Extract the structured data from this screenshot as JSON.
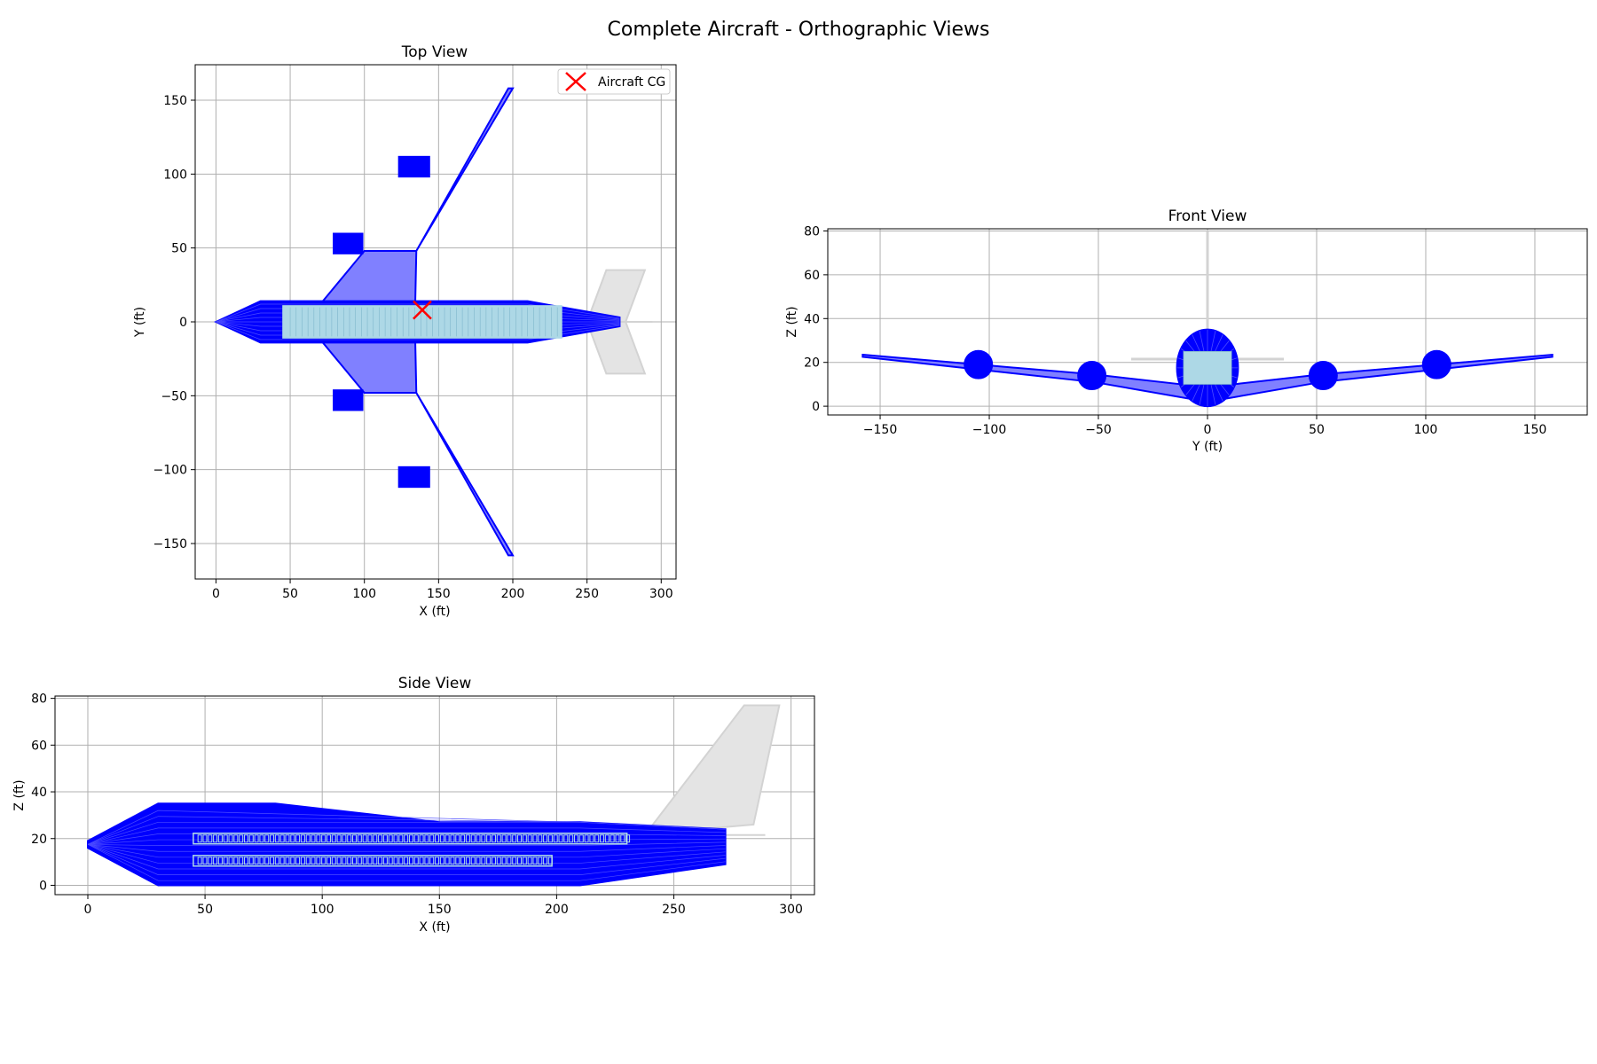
{
  "figure": {
    "title": "Complete Aircraft - Orthographic Views"
  },
  "colors": {
    "structure": "#0000ff",
    "wing_fill": "#8080ff",
    "cabin": "#add8e6",
    "tail": "#d3d3d3",
    "tail_fill": "#e4e4e4",
    "cg": "#ff0000",
    "grid": "#b0b0b0"
  },
  "chart_data": [
    {
      "id": "top",
      "type": "scatter",
      "title": "Top View",
      "xlabel": "X (ft)",
      "ylabel": "Y (ft)",
      "xlim": [
        -14,
        310
      ],
      "ylim": [
        -174,
        174
      ],
      "xticks": [
        0,
        50,
        100,
        150,
        200,
        250,
        300
      ],
      "yticks": [
        -150,
        -100,
        -50,
        0,
        50,
        100,
        150
      ],
      "grid": true,
      "legend": {
        "placement": "upper-right",
        "entries": [
          "Aircraft CG"
        ]
      },
      "cg": {
        "x": 139,
        "y": 8
      },
      "fuselage_outline": [
        [
          0,
          0
        ],
        [
          30,
          14
        ],
        [
          210,
          14
        ],
        [
          272,
          3
        ],
        [
          272,
          -3
        ],
        [
          210,
          -14
        ],
        [
          30,
          -14
        ]
      ],
      "wing_planform": [
        [
          72,
          14
        ],
        [
          100,
          48
        ],
        [
          135,
          48
        ],
        [
          197,
          158
        ],
        [
          200,
          158
        ],
        [
          135,
          48
        ],
        [
          134,
          0
        ],
        [
          135,
          -48
        ],
        [
          200,
          -158
        ],
        [
          197,
          -158
        ],
        [
          135,
          -48
        ],
        [
          100,
          -48
        ],
        [
          72,
          -14
        ]
      ],
      "engines": [
        {
          "x": [
            79,
            99
          ],
          "y": [
            46,
            60
          ]
        },
        {
          "x": [
            123,
            144
          ],
          "y": [
            98,
            112
          ]
        },
        {
          "x": [
            79,
            99
          ],
          "y": [
            -60,
            -46
          ]
        },
        {
          "x": [
            123,
            144
          ],
          "y": [
            -112,
            -98
          ]
        }
      ],
      "cabin": {
        "x": [
          45,
          233
        ],
        "y": [
          -11,
          11
        ]
      },
      "horizontal_tail": [
        [
          250,
          0
        ],
        [
          263,
          35
        ],
        [
          289,
          35
        ],
        [
          276,
          0
        ],
        [
          289,
          -35
        ],
        [
          263,
          -35
        ]
      ],
      "vertical_tail": [
        [
          250,
          0
        ],
        [
          294,
          0
        ]
      ]
    },
    {
      "id": "front",
      "type": "scatter",
      "title": "Front View",
      "xlabel": "Y (ft)",
      "ylabel": "Z (ft)",
      "xlim": [
        -174,
        174
      ],
      "ylim": [
        -4,
        81
      ],
      "xticks": [
        -150,
        -100,
        -50,
        0,
        50,
        100,
        150
      ],
      "yticks": [
        0,
        20,
        40,
        60,
        80
      ],
      "grid": true,
      "wing_leading": [
        [
          -158,
          23.5
        ],
        [
          -105,
          19
        ],
        [
          -52,
          14.5
        ],
        [
          -12,
          10
        ],
        [
          0,
          0
        ],
        [
          12,
          10
        ],
        [
          52,
          14.5
        ],
        [
          105,
          19
        ],
        [
          158,
          23.5
        ]
      ],
      "wing_trailing": [
        [
          -158,
          22.5
        ],
        [
          -52,
          11
        ],
        [
          0,
          2
        ],
        [
          52,
          11
        ],
        [
          158,
          22.5
        ]
      ],
      "engines": [
        {
          "y": -105,
          "z": 19,
          "r": 6.5
        },
        {
          "y": -53,
          "z": 14,
          "r": 6.5
        },
        {
          "y": 53,
          "z": 14,
          "r": 6.5
        },
        {
          "y": 105,
          "z": 19,
          "r": 6.5
        }
      ],
      "fuselage": {
        "y": [
          -14,
          14
        ],
        "z": [
          0,
          35
        ]
      },
      "horizontal_tail": {
        "y": [
          -35,
          35
        ],
        "z": 21.5
      },
      "vertical_tail": {
        "y": 0,
        "z": [
          22,
          80
        ]
      }
    },
    {
      "id": "side",
      "type": "scatter",
      "title": "Side View",
      "xlabel": "X (ft)",
      "ylabel": "Z (ft)",
      "xlim": [
        -14,
        310
      ],
      "ylim": [
        -4,
        81
      ],
      "xticks": [
        0,
        50,
        100,
        150,
        200,
        250,
        300
      ],
      "yticks": [
        0,
        20,
        40,
        60,
        80
      ],
      "grid": true,
      "fuselage_outline": [
        [
          0,
          19
        ],
        [
          30,
          35
        ],
        [
          80,
          35
        ],
        [
          150,
          27
        ],
        [
          210,
          27
        ],
        [
          272,
          24
        ],
        [
          272,
          9
        ],
        [
          210,
          0
        ],
        [
          30,
          0
        ],
        [
          0,
          16
        ]
      ],
      "cabin_upper": {
        "x": [
          45,
          230
        ],
        "z": 20
      },
      "cabin_lower": {
        "x": [
          45,
          198
        ],
        "z": 10.5
      },
      "vertical_tail": [
        [
          238,
          22
        ],
        [
          280,
          77
        ],
        [
          295,
          77
        ],
        [
          284,
          26
        ],
        [
          238,
          22
        ]
      ],
      "horizontal_tail": [
        [
          236,
          21.5
        ],
        [
          289,
          21.5
        ]
      ]
    }
  ]
}
